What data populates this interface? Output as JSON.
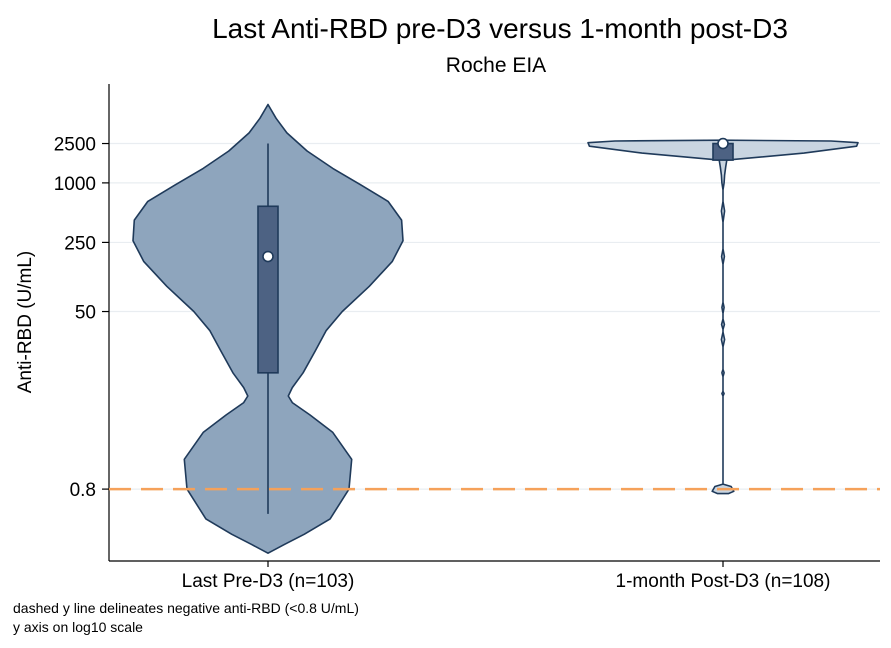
{
  "chart_data": {
    "type": "violin",
    "title": "Last Anti-RBD pre-D3 versus 1-month post-D3",
    "subtitle": "Roche EIA",
    "ylabel": "Anti-RBD (U/mL)",
    "yscale": "log10",
    "ylim": [
      0.15,
      10000
    ],
    "yticks": [
      0.8,
      50,
      250,
      1000,
      2500
    ],
    "ytick_labels": [
      "0.8",
      "50",
      "250",
      "1000",
      "2500"
    ],
    "reference_line": {
      "y": 0.8,
      "style": "dashed",
      "color": "#f5a15a"
    },
    "groups": [
      {
        "label": "Last Pre-D3 (n=103)",
        "n": 103,
        "violin_fill": "#8ea5bd",
        "box_fill": "#4d6283",
        "median": 180,
        "q1": 12,
        "q3": 580,
        "whisker_low": 0.45,
        "whisker_high": 2500,
        "density_range": [
          0.18,
          6200
        ],
        "density_profile": [
          [
            0.18,
            0.0
          ],
          [
            0.22,
            0.12
          ],
          [
            0.28,
            0.27
          ],
          [
            0.4,
            0.46
          ],
          [
            0.8,
            0.6
          ],
          [
            1.6,
            0.62
          ],
          [
            3,
            0.48
          ],
          [
            4.5,
            0.31
          ],
          [
            6,
            0.18
          ],
          [
            7,
            0.15
          ],
          [
            8.5,
            0.18
          ],
          [
            12,
            0.26
          ],
          [
            20,
            0.35
          ],
          [
            32,
            0.43
          ],
          [
            50,
            0.55
          ],
          [
            90,
            0.75
          ],
          [
            160,
            0.92
          ],
          [
            260,
            1.0
          ],
          [
            420,
            0.99
          ],
          [
            650,
            0.89
          ],
          [
            950,
            0.69
          ],
          [
            1400,
            0.48
          ],
          [
            2100,
            0.29
          ],
          [
            3200,
            0.14
          ],
          [
            4500,
            0.06
          ],
          [
            6200,
            0.0
          ]
        ]
      },
      {
        "label": "1-month Post-D3 (n=108)",
        "n": 108,
        "violin_fill": "#c9d5e1",
        "box_fill": "#4d6283",
        "median": 2500,
        "q1": 1700,
        "q3": 2500,
        "whisker_low": 1700,
        "whisker_high": 2500,
        "density_range": [
          0.72,
          2700
        ],
        "density_profile": [
          [
            0.72,
            0.04
          ],
          [
            0.76,
            0.08
          ],
          [
            0.85,
            0.06
          ],
          [
            0.9,
            0.0
          ],
          [
            7,
            0.0
          ],
          [
            7.4,
            0.008
          ],
          [
            7.8,
            0.0
          ],
          [
            11,
            0.0
          ],
          [
            12,
            0.008
          ],
          [
            13,
            0.0
          ],
          [
            22,
            0.0
          ],
          [
            26,
            0.012
          ],
          [
            31,
            0.0
          ],
          [
            33,
            0.0
          ],
          [
            37,
            0.01
          ],
          [
            42,
            0.0
          ],
          [
            48,
            0.0
          ],
          [
            55,
            0.008
          ],
          [
            62,
            0.0
          ],
          [
            150,
            0.0
          ],
          [
            180,
            0.01
          ],
          [
            215,
            0.0
          ],
          [
            400,
            0.0
          ],
          [
            520,
            0.012
          ],
          [
            650,
            0.0
          ],
          [
            850,
            0.0
          ],
          [
            1000,
            0.008
          ],
          [
            1200,
            0.012
          ],
          [
            1450,
            0.02
          ],
          [
            1700,
            0.028
          ],
          [
            2000,
            0.6
          ],
          [
            2350,
            0.99
          ],
          [
            2550,
            1.0
          ],
          [
            2650,
            0.8
          ],
          [
            2700,
            0.0
          ]
        ]
      }
    ],
    "notes": [
      "dashed y line delineates negative anti-RBD (<0.8 U/mL)",
      "y axis on log10 scale"
    ]
  }
}
